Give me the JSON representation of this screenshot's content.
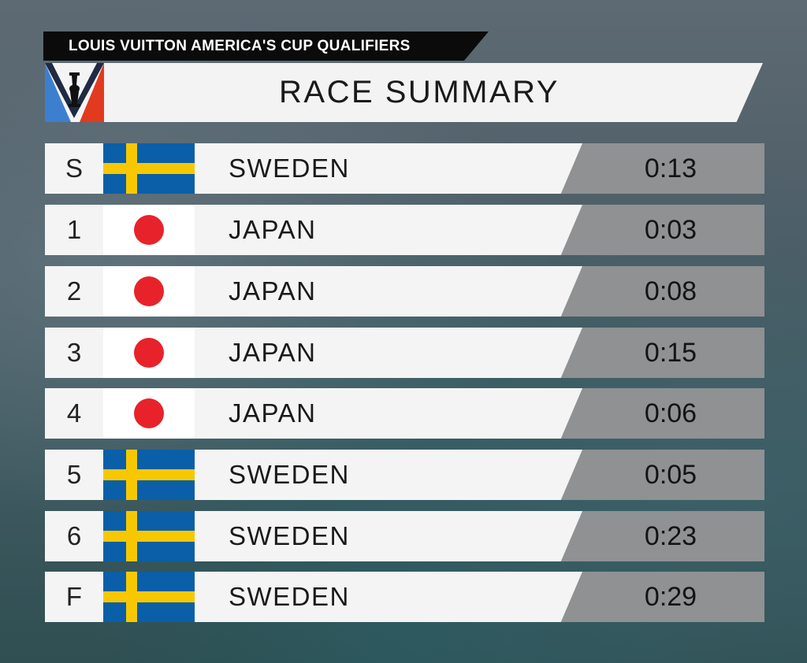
{
  "header": {
    "event_label": "LOUIS VUITTON AMERICA'S CUP QUALIFIERS",
    "title": "RACE SUMMARY",
    "logo_icon": "americas-cup-trophy-logo"
  },
  "colors": {
    "japan_red": "#e8222a",
    "sweden_blue": "#0a5fa8",
    "sweden_yellow": "#f7c800",
    "logo_blue": "#3d7fcf",
    "logo_red": "#e23a1f"
  },
  "rows": [
    {
      "label": "S",
      "flag": "sweden-flag-icon",
      "country": "SWEDEN",
      "time": "0:13"
    },
    {
      "label": "1",
      "flag": "japan-flag-icon",
      "country": "JAPAN",
      "time": "0:03"
    },
    {
      "label": "2",
      "flag": "japan-flag-icon",
      "country": "JAPAN",
      "time": "0:08"
    },
    {
      "label": "3",
      "flag": "japan-flag-icon",
      "country": "JAPAN",
      "time": "0:15"
    },
    {
      "label": "4",
      "flag": "japan-flag-icon",
      "country": "JAPAN",
      "time": "0:06"
    },
    {
      "label": "5",
      "flag": "sweden-flag-icon",
      "country": "SWEDEN",
      "time": "0:05"
    },
    {
      "label": "6",
      "flag": "sweden-flag-icon",
      "country": "SWEDEN",
      "time": "0:23"
    },
    {
      "label": "F",
      "flag": "sweden-flag-icon",
      "country": "SWEDEN",
      "time": "0:29"
    }
  ]
}
